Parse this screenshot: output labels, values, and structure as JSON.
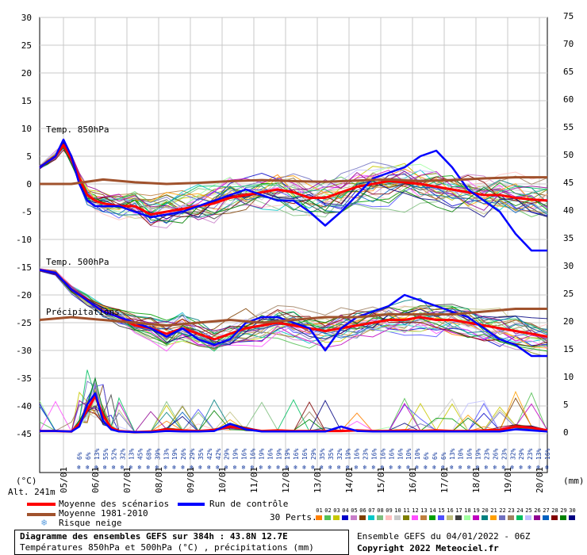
{
  "chart_data": {
    "type": "line",
    "title": "Diagramme des ensembles GEFS sur 384h : 43.8N 12.7E",
    "subtitle": "Températures 850hPa et 500hPa (°C) , précipitations (mm)",
    "left_axis": {
      "unit": "(°C)",
      "ticks": [
        30,
        25,
        20,
        15,
        10,
        5,
        0,
        -5,
        -10,
        -15,
        -20,
        -25,
        -30,
        -35,
        -40,
        -45
      ],
      "range": [
        -45,
        30
      ]
    },
    "right_axis": {
      "unit": "(mm)",
      "ticks": [
        75,
        70,
        65,
        60,
        55,
        50,
        45,
        40,
        35,
        30,
        25,
        20,
        15,
        10,
        5,
        0
      ],
      "range": [
        0,
        75
      ]
    },
    "x_labels": [
      "05/01",
      "06/01",
      "07/01",
      "08/01",
      "09/01",
      "10/01",
      "11/01",
      "12/01",
      "13/01",
      "14/01",
      "15/01",
      "16/01",
      "17/01",
      "18/01",
      "19/01",
      "20/01"
    ],
    "altitude": "Alt. 241m",
    "section_labels": {
      "t850": "Temp. 850hPa",
      "t500": "Temp. 500hPa",
      "precip": "Précipitations"
    },
    "snow_risk": [
      "6%",
      "6%",
      "13%",
      "55%",
      "52%",
      "32%",
      "13%",
      "45%",
      "68%",
      "39%",
      "13%",
      "19%",
      "26%",
      "29%",
      "35%",
      "42%",
      "42%",
      "29%",
      "19%",
      "16%",
      "16%",
      "19%",
      "16%",
      "19%",
      "19%",
      "16%",
      "16%",
      "29%",
      "35%",
      "35%",
      "32%",
      "19%",
      "16%",
      "23%",
      "16%",
      "16%",
      "16%",
      "16%",
      "10%",
      "10%",
      "6%",
      "6%",
      "6%",
      "13%",
      "10%",
      "16%",
      "19%",
      "23%",
      "26%",
      "23%",
      "32%",
      "29%",
      "23%",
      "13%",
      "16%"
    ],
    "series": [
      {
        "name": "Moyenne des scénarios",
        "color": "#ff0000",
        "group": "t850",
        "x": [
          0,
          6,
          12,
          18,
          24,
          30,
          36,
          42,
          48,
          60,
          72,
          84,
          96,
          108,
          120,
          132,
          144,
          156,
          168,
          180,
          192,
          204,
          216,
          228,
          240,
          252,
          264,
          276,
          288,
          300,
          312,
          324,
          336,
          348,
          360,
          372,
          384
        ],
        "y": [
          3,
          4,
          5,
          7,
          4.5,
          1,
          -2,
          -3,
          -3.5,
          -4,
          -4,
          -5.5,
          -5,
          -4.5,
          -4,
          -3.5,
          -2.5,
          -2,
          -1.5,
          -1,
          -1.5,
          -2.5,
          -2.5,
          -1.5,
          -0.5,
          0,
          0.5,
          0.3,
          0,
          -0.5,
          -1,
          -1.5,
          -2,
          -2,
          -2.5,
          -2.8,
          -3
        ]
      },
      {
        "name": "Run de contrôle",
        "color": "#0000ff",
        "group": "t850",
        "x": [
          0,
          6,
          12,
          18,
          24,
          30,
          36,
          42,
          48,
          60,
          72,
          84,
          96,
          108,
          120,
          132,
          144,
          156,
          168,
          180,
          192,
          204,
          216,
          228,
          240,
          252,
          264,
          276,
          288,
          300,
          312,
          324,
          336,
          348,
          360,
          372,
          384
        ],
        "y": [
          3,
          4,
          5,
          8,
          5,
          0,
          -3,
          -4,
          -4,
          -4,
          -5,
          -6,
          -5.5,
          -5,
          -4,
          -3,
          -2,
          -1,
          -2,
          -3,
          -3,
          -5,
          -7.5,
          -5,
          -2,
          1,
          2,
          3,
          5,
          6,
          3,
          -1,
          -3,
          -5,
          -9,
          -12,
          -12
        ]
      },
      {
        "name": "Moyenne 1981-2010",
        "color": "#a0522d",
        "group": "t850",
        "x": [
          0,
          24,
          48,
          72,
          96,
          120,
          144,
          168,
          192,
          216,
          240,
          264,
          288,
          312,
          336,
          360,
          384
        ],
        "y": [
          0,
          0,
          0.8,
          0.3,
          0,
          0.2,
          0.5,
          0.7,
          0.5,
          0.4,
          0.6,
          0.8,
          0.5,
          0.7,
          1,
          1.2,
          1.2
        ]
      },
      {
        "name": "Moyenne des scénarios",
        "color": "#ff0000",
        "group": "t500",
        "x": [
          0,
          12,
          24,
          36,
          48,
          60,
          72,
          84,
          96,
          108,
          120,
          132,
          144,
          156,
          168,
          180,
          192,
          204,
          216,
          228,
          240,
          252,
          264,
          276,
          288,
          300,
          312,
          324,
          336,
          348,
          360,
          372,
          384
        ],
        "y": [
          -15.5,
          -16,
          -19,
          -21,
          -23,
          -24,
          -25.5,
          -26,
          -27,
          -26,
          -27,
          -28,
          -27,
          -26,
          -25.5,
          -25,
          -25.5,
          -26,
          -26.5,
          -26,
          -25.5,
          -25,
          -24.5,
          -24.5,
          -24,
          -24.5,
          -24.5,
          -25,
          -25.5,
          -26,
          -26.5,
          -27,
          -27.5
        ]
      },
      {
        "name": "Run de contrôle",
        "color": "#0000ff",
        "group": "t500",
        "x": [
          0,
          12,
          24,
          36,
          48,
          60,
          72,
          84,
          96,
          108,
          120,
          132,
          144,
          156,
          168,
          180,
          192,
          204,
          216,
          228,
          240,
          252,
          264,
          276,
          288,
          300,
          312,
          324,
          336,
          348,
          360,
          372,
          384
        ],
        "y": [
          -15.5,
          -16,
          -19,
          -21,
          -23,
          -24,
          -25,
          -26,
          -27.5,
          -26,
          -28,
          -29,
          -28,
          -25,
          -24,
          -24,
          -25,
          -26,
          -30,
          -26,
          -24,
          -23,
          -22,
          -20,
          -21,
          -22,
          -23,
          -24,
          -26,
          -28,
          -29,
          -31,
          -31
        ]
      },
      {
        "name": "Moyenne 1981-2010",
        "color": "#a0522d",
        "group": "t500",
        "x": [
          0,
          24,
          48,
          72,
          96,
          120,
          144,
          168,
          192,
          216,
          240,
          264,
          288,
          312,
          336,
          360,
          384
        ],
        "y": [
          -24.5,
          -24,
          -24.5,
          -25,
          -25.5,
          -25,
          -24.5,
          -25,
          -24.5,
          -24,
          -24,
          -23.5,
          -23.5,
          -23.5,
          -23,
          -22.5,
          -22.5
        ]
      },
      {
        "name": "Moyenne des scénarios",
        "color": "#ff0000",
        "group": "precip",
        "x": [
          0,
          12,
          24,
          30,
          36,
          42,
          48,
          54,
          60,
          72,
          84,
          96,
          108,
          120,
          132,
          144,
          156,
          168,
          180,
          192,
          204,
          216,
          228,
          240,
          252,
          264,
          276,
          288,
          300,
          312,
          324,
          336,
          348,
          360,
          372,
          384
        ],
        "y": [
          0.2,
          0.2,
          0.1,
          1.5,
          4,
          6.5,
          3,
          0.8,
          0.2,
          0,
          0.1,
          0.5,
          0.3,
          0.2,
          0.4,
          1,
          0.6,
          0.2,
          0.3,
          0.2,
          0.2,
          0.2,
          0.2,
          0.3,
          0.2,
          0.2,
          0.3,
          0.2,
          0.3,
          0.2,
          0.2,
          0.3,
          0.4,
          1,
          0.8,
          0.3
        ]
      },
      {
        "name": "Run de contrôle",
        "color": "#0000ff",
        "group": "precip",
        "x": [
          0,
          12,
          24,
          30,
          36,
          42,
          48,
          54,
          60,
          72,
          84,
          96,
          108,
          120,
          132,
          144,
          156,
          168,
          180,
          192,
          204,
          216,
          228,
          240,
          252,
          264,
          276,
          288,
          300,
          312,
          324,
          336,
          348,
          360,
          372,
          384
        ],
        "y": [
          0.2,
          0.2,
          0.1,
          1,
          5,
          7,
          2,
          0.5,
          0.1,
          0,
          0,
          0.2,
          0.1,
          0.1,
          0.2,
          1.5,
          0.5,
          0.1,
          0.1,
          0.1,
          0.1,
          0.1,
          1,
          0.2,
          0.1,
          0.1,
          0.1,
          0.1,
          0.1,
          0.1,
          0.1,
          0.1,
          0.1,
          0.5,
          0.3,
          0.1
        ]
      }
    ],
    "perturbation_count": 30,
    "legend": [
      {
        "label": "Moyenne des scénarios",
        "color": "#ff0000"
      },
      {
        "label": "Moyenne 1981-2010",
        "color": "#a0522d"
      },
      {
        "label": "Run de contrôle",
        "color": "#0000ff"
      },
      {
        "label": "Risque neige",
        "icon": "snowflake-icon"
      }
    ],
    "perts_label": "30 Perts.",
    "perts_numbers": [
      "01",
      "02",
      "03",
      "04",
      "05",
      "06",
      "07",
      "08",
      "09",
      "10",
      "11",
      "12",
      "13",
      "14",
      "15",
      "16",
      "17",
      "18",
      "19",
      "20",
      "21",
      "22",
      "23",
      "24",
      "25",
      "26",
      "27",
      "28",
      "29",
      "30"
    ],
    "perts_colors": [
      "#ff7f00",
      "#55c055",
      "#c8c800",
      "#0000c8",
      "#c87ec8",
      "#7f3f00",
      "#00c8c8",
      "#7fbf7f",
      "#ffbfbf",
      "#c8c8c8",
      "#7f7f00",
      "#ff4fff",
      "#bf7f3f",
      "#00a000",
      "#4f4fff",
      "#bfbf7f",
      "#3f3f3f",
      "#9fff9f",
      "#c000c0",
      "#008080",
      "#ff9f00",
      "#6f6fbf",
      "#a08060",
      "#00bf60",
      "#bfbfff",
      "#8f008f",
      "#0060c0",
      "#800000",
      "#008000",
      "#000080"
    ]
  },
  "run_info": "Ensemble GEFS du 04/01/2022 - 06Z",
  "copyright": "Copyright 2022 Meteociel.fr"
}
